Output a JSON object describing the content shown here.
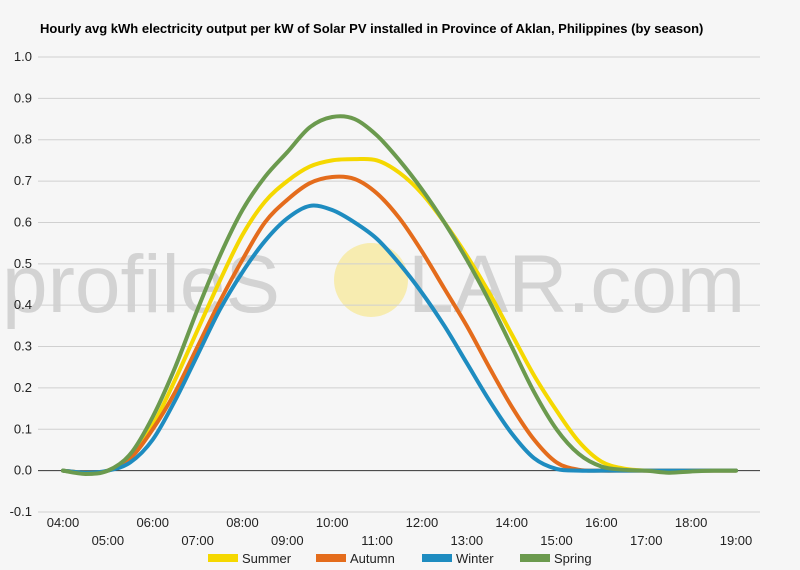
{
  "chart_data": {
    "type": "line",
    "title": "Hourly avg kWh electricity output per kW of Solar PV installed in Province of Aklan, Philippines (by season)",
    "xlabel": "",
    "ylabel": "",
    "ylim": [
      -0.1,
      1.0
    ],
    "xlim": [
      4,
      19
    ],
    "yticks": [
      "-0.1",
      "0.0",
      "0.1",
      "0.2",
      "0.3",
      "0.4",
      "0.5",
      "0.6",
      "0.7",
      "0.8",
      "0.9",
      "1.0"
    ],
    "xticks": [
      "04:00",
      "05:00",
      "06:00",
      "07:00",
      "08:00",
      "09:00",
      "10:00",
      "11:00",
      "12:00",
      "13:00",
      "14:00",
      "15:00",
      "16:00",
      "17:00",
      "18:00",
      "19:00"
    ],
    "grid": true,
    "legend": "bottom",
    "x": [
      4,
      4.5,
      5,
      5.5,
      6,
      6.5,
      7,
      7.5,
      8,
      8.5,
      9,
      9.5,
      10,
      10.5,
      11,
      11.5,
      12,
      12.5,
      13,
      13.5,
      14,
      14.5,
      15,
      15.5,
      16,
      16.5,
      17,
      17.5,
      18,
      18.5,
      19
    ],
    "series": [
      {
        "name": "Summer",
        "color": "#f5d800",
        "values": [
          0.0,
          -0.005,
          0.0,
          0.035,
          0.11,
          0.22,
          0.34,
          0.46,
          0.57,
          0.65,
          0.7,
          0.735,
          0.75,
          0.753,
          0.75,
          0.72,
          0.67,
          0.6,
          0.52,
          0.43,
          0.33,
          0.23,
          0.145,
          0.07,
          0.022,
          0.005,
          0.0,
          0.0,
          0.0,
          0.0,
          0.0
        ]
      },
      {
        "name": "Autumn",
        "color": "#e46c1c",
        "values": [
          0.0,
          -0.005,
          0.0,
          0.03,
          0.1,
          0.19,
          0.3,
          0.41,
          0.51,
          0.6,
          0.655,
          0.695,
          0.71,
          0.705,
          0.67,
          0.61,
          0.53,
          0.44,
          0.35,
          0.25,
          0.155,
          0.075,
          0.02,
          0.002,
          0.0,
          0.0,
          0.0,
          0.0,
          0.0,
          0.0,
          0.0
        ]
      },
      {
        "name": "Winter",
        "color": "#1e8cc0",
        "values": [
          0.0,
          -0.005,
          0.0,
          0.02,
          0.075,
          0.17,
          0.28,
          0.39,
          0.48,
          0.555,
          0.61,
          0.64,
          0.63,
          0.6,
          0.56,
          0.5,
          0.43,
          0.35,
          0.26,
          0.17,
          0.09,
          0.03,
          0.004,
          0.0,
          0.0,
          0.0,
          0.0,
          0.0,
          0.0,
          0.0,
          0.0
        ]
      },
      {
        "name": "Spring",
        "color": "#6b9a4e",
        "values": [
          0.0,
          -0.008,
          0.0,
          0.04,
          0.13,
          0.25,
          0.39,
          0.52,
          0.63,
          0.71,
          0.77,
          0.83,
          0.855,
          0.85,
          0.81,
          0.75,
          0.68,
          0.6,
          0.51,
          0.41,
          0.3,
          0.19,
          0.1,
          0.04,
          0.01,
          0.002,
          0.0,
          -0.005,
          -0.002,
          0.0,
          0.0
        ]
      }
    ]
  },
  "watermark": {
    "left_text": "profileS",
    "right_text": "LAR.com",
    "sun_color": "#f7ecb0"
  }
}
